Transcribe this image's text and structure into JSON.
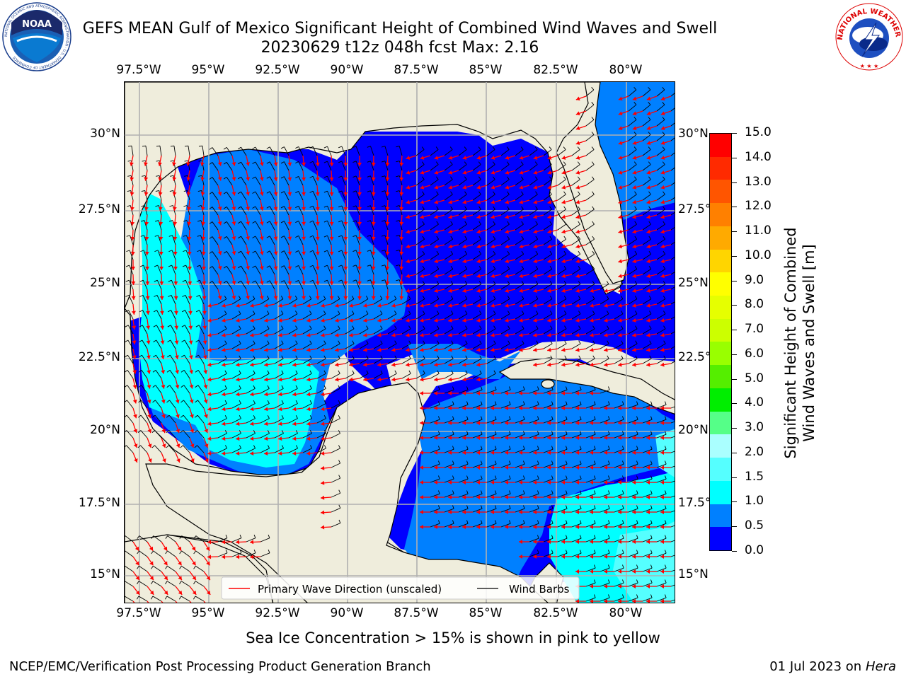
{
  "title": {
    "line1": "GEFS MEAN Gulf of Mexico Significant Height of Combined Wind Waves and Swell",
    "line2": "20230629 t12z 048h fcst   Max: 2.16"
  },
  "logos": {
    "noaa_text": "NOAA",
    "noaa_ring": "NATIONAL OCEANIC AND ATMOSPHERIC ADMINISTRATION · U.S. DEPARTMENT OF COMMERCE",
    "nws_ring": "NATIONAL WEATHER SERVICE"
  },
  "axes": {
    "lon_ticks": [
      "97.5°W",
      "95°W",
      "92.5°W",
      "90°W",
      "87.5°W",
      "85°W",
      "82.5°W",
      "80°W"
    ],
    "lat_ticks_left": [
      "30°N",
      "27.5°N",
      "25°N",
      "22.5°N",
      "20°N",
      "17.5°N",
      "15°N"
    ],
    "lat_ticks_right": [
      "30°N",
      "27.5°N",
      "25°N",
      "22.5°N",
      "20°N",
      "17.5°N",
      "15°N"
    ]
  },
  "colorbar": {
    "label_line1": "Significant Height of Combined",
    "label_line2": "Wind Waves and Swell [m]",
    "ticks": [
      "15.0",
      "14.0",
      "13.0",
      "12.0",
      "11.0",
      "10.0",
      "9.0",
      "8.0",
      "7.0",
      "6.0",
      "5.0",
      "4.0",
      "3.0",
      "2.0",
      "1.5",
      "1.0",
      "0.5",
      "0.0"
    ],
    "colors": [
      "#ff0000",
      "#ff2a00",
      "#ff5500",
      "#ff8000",
      "#ffaa00",
      "#ffd500",
      "#ffff00",
      "#e6ff00",
      "#ccff00",
      "#99ff00",
      "#55ee00",
      "#00ee00",
      "#55ff88",
      "#aaffff",
      "#55ffff",
      "#00ffff",
      "#0080ff",
      "#0000ff"
    ]
  },
  "legend": {
    "wave_direction": "Primary Wave Direction (unscaled)",
    "wind_barbs": "Wind Barbs"
  },
  "colors": {
    "land": "#efeddc",
    "wave_dark_blue": "#0000ff",
    "wave_blue": "#0080ff",
    "wave_cyan": "#00ffff",
    "wave_light_cyan": "#55ffff",
    "arrow_red": "#ff0000"
  },
  "notes": {
    "sea_ice": "Sea Ice Concentration > 15% is shown in pink to yellow"
  },
  "footer": {
    "left": "NCEP/EMC/Verification Post Processing Product Generation Branch",
    "right_date": "01 Jul 2023 on ",
    "right_machine": "Hera"
  }
}
